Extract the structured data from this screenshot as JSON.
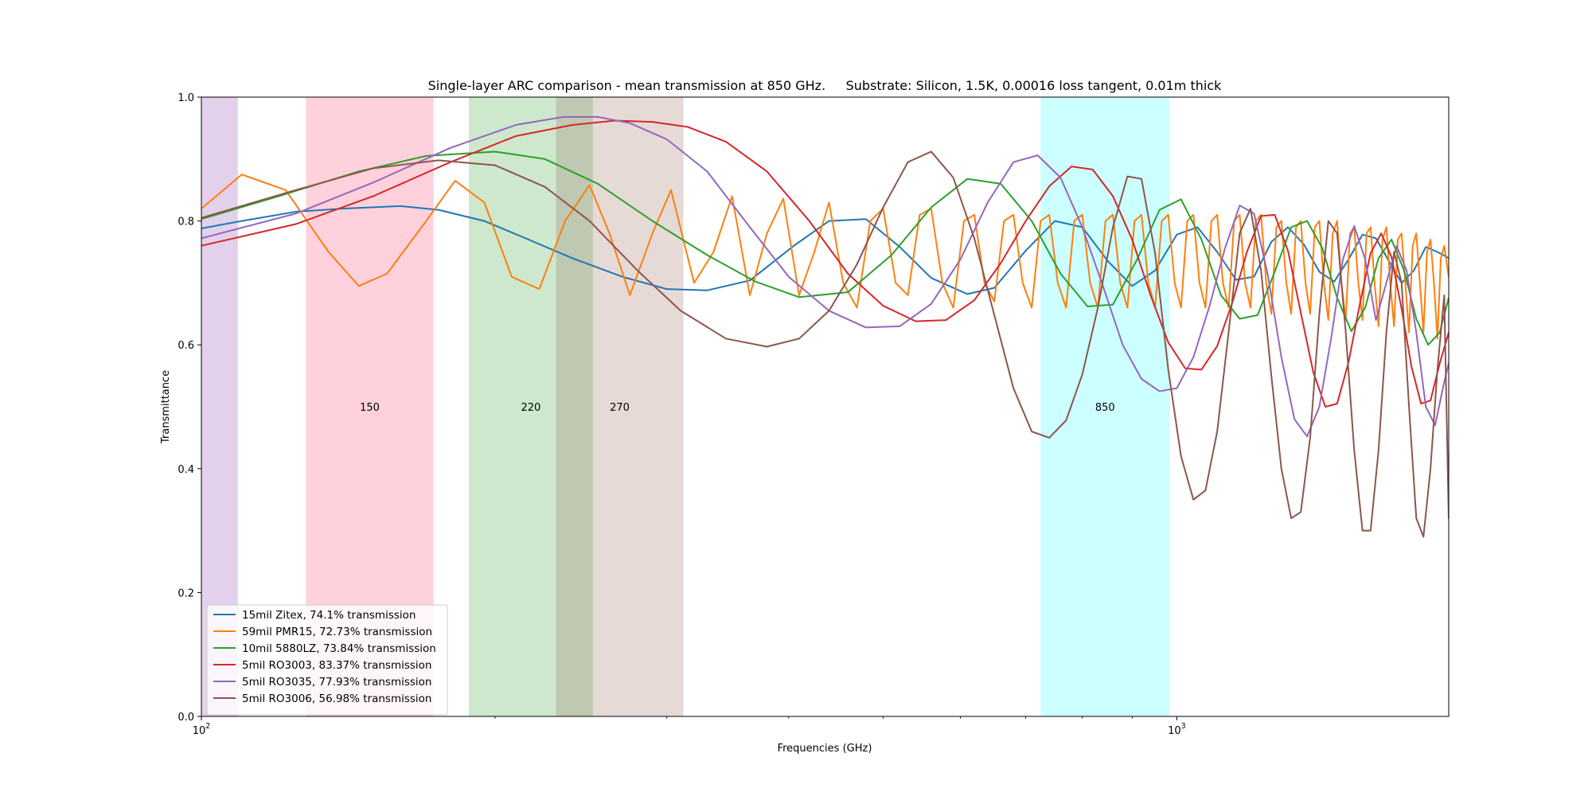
{
  "chart_data": {
    "type": "line",
    "title": "Single-layer ARC comparison - mean transmission at 850 GHz.     Substrate: Silicon, 1.5K, 0.00016 loss tangent, 0.01m thick",
    "xlabel": "Frequencies (GHz)",
    "ylabel": "Transmittance",
    "xscale": "log",
    "xlim": [
      100,
      1900
    ],
    "ylim": [
      0,
      1
    ],
    "x_major_ticks": [
      {
        "value": 100,
        "base": "10",
        "exp": "2"
      },
      {
        "value": 1000,
        "base": "10",
        "exp": "3"
      }
    ],
    "y_ticks": [
      "0.0",
      "0.2",
      "0.4",
      "0.6",
      "0.8",
      "1.0"
    ],
    "grid": false,
    "legend_position": "lower left",
    "bands": [
      {
        "x0": 100,
        "x1": 109,
        "color": "#9b59b6",
        "opacity": 0.28,
        "label": ""
      },
      {
        "x0": 128,
        "x1": 173,
        "color": "#ff6f91",
        "opacity": 0.32,
        "label": "150"
      },
      {
        "x0": 188,
        "x1": 252,
        "color": "#2ca02c",
        "opacity": 0.24,
        "label": "220"
      },
      {
        "x0": 231,
        "x1": 312,
        "color": "#8c564b",
        "opacity": 0.22,
        "label": "270"
      },
      {
        "x0": 725,
        "x1": 983,
        "color": "#00ffff",
        "opacity": 0.2,
        "label": "850"
      }
    ],
    "band_label_y": 0.5,
    "series": [
      {
        "name": "15mil Zitex, 74.1% transmission",
        "color": "#1f77b4",
        "x": [
          100,
          110,
          125,
          140,
          160,
          175,
          195,
          215,
          240,
          270,
          300,
          330,
          365,
          405,
          440,
          480,
          520,
          560,
          610,
          650,
          700,
          750,
          800,
          850,
          900,
          950,
          1000,
          1050,
          1100,
          1150,
          1200,
          1250,
          1300,
          1350,
          1400,
          1450,
          1500,
          1550,
          1600,
          1650,
          1700,
          1750,
          1800,
          1850,
          1900
        ],
        "y": [
          0.788,
          0.8,
          0.815,
          0.82,
          0.824,
          0.818,
          0.8,
          0.772,
          0.74,
          0.71,
          0.69,
          0.688,
          0.704,
          0.76,
          0.8,
          0.803,
          0.758,
          0.708,
          0.682,
          0.692,
          0.752,
          0.8,
          0.79,
          0.735,
          0.695,
          0.72,
          0.778,
          0.79,
          0.75,
          0.705,
          0.71,
          0.766,
          0.79,
          0.762,
          0.718,
          0.702,
          0.738,
          0.778,
          0.772,
          0.735,
          0.7,
          0.72,
          0.758,
          0.75,
          0.74
        ]
      },
      {
        "name": "59mil PMR15, 72.73% transmission",
        "color": "#ff7f0e",
        "x": [
          100,
          110,
          122,
          135,
          145,
          155,
          170,
          182,
          195,
          208,
          222,
          236,
          250,
          262,
          275,
          290,
          303,
          320,
          335,
          350,
          365,
          380,
          395,
          410,
          425,
          440,
          455,
          470,
          485,
          500,
          515,
          530,
          545,
          560,
          575,
          590,
          605,
          620,
          635,
          650,
          665,
          680,
          695,
          710,
          725,
          740,
          755,
          770,
          785,
          800,
          815,
          830,
          845,
          860,
          875,
          890,
          905,
          920,
          935,
          950,
          965,
          980,
          995,
          1010,
          1025,
          1040,
          1055,
          1070,
          1085,
          1100,
          1115,
          1130,
          1145,
          1160,
          1175,
          1190,
          1205,
          1220,
          1235,
          1250,
          1265,
          1280,
          1295,
          1310,
          1325,
          1340,
          1355,
          1370,
          1385,
          1400,
          1415,
          1430,
          1445,
          1460,
          1475,
          1490,
          1505,
          1520,
          1535,
          1550,
          1565,
          1580,
          1595,
          1610,
          1625,
          1640,
          1655,
          1670,
          1685,
          1700,
          1715,
          1730,
          1745,
          1760,
          1775,
          1790,
          1805,
          1820,
          1835,
          1850,
          1865,
          1880,
          1900
        ],
        "y": [
          0.82,
          0.875,
          0.85,
          0.75,
          0.695,
          0.715,
          0.8,
          0.865,
          0.83,
          0.71,
          0.69,
          0.8,
          0.858,
          0.78,
          0.68,
          0.78,
          0.85,
          0.7,
          0.75,
          0.84,
          0.68,
          0.78,
          0.836,
          0.68,
          0.75,
          0.83,
          0.7,
          0.66,
          0.8,
          0.82,
          0.7,
          0.68,
          0.81,
          0.82,
          0.7,
          0.66,
          0.8,
          0.81,
          0.7,
          0.67,
          0.8,
          0.81,
          0.7,
          0.66,
          0.8,
          0.81,
          0.7,
          0.66,
          0.8,
          0.81,
          0.7,
          0.66,
          0.8,
          0.81,
          0.7,
          0.66,
          0.8,
          0.81,
          0.7,
          0.66,
          0.8,
          0.81,
          0.7,
          0.66,
          0.8,
          0.81,
          0.7,
          0.66,
          0.8,
          0.81,
          0.7,
          0.66,
          0.8,
          0.81,
          0.7,
          0.66,
          0.8,
          0.81,
          0.7,
          0.65,
          0.79,
          0.8,
          0.7,
          0.65,
          0.79,
          0.8,
          0.7,
          0.65,
          0.79,
          0.8,
          0.7,
          0.64,
          0.78,
          0.8,
          0.7,
          0.64,
          0.78,
          0.79,
          0.7,
          0.64,
          0.78,
          0.79,
          0.7,
          0.63,
          0.77,
          0.79,
          0.7,
          0.63,
          0.77,
          0.78,
          0.7,
          0.62,
          0.76,
          0.78,
          0.7,
          0.62,
          0.75,
          0.77,
          0.7,
          0.61,
          0.74,
          0.76,
          0.71
        ]
      },
      {
        "name": "10mil 5880LZ, 73.84% transmission",
        "color": "#2ca02c",
        "x": [
          100,
          120,
          145,
          170,
          200,
          225,
          255,
          290,
          330,
          370,
          410,
          460,
          510,
          560,
          610,
          660,
          710,
          760,
          810,
          860,
          910,
          960,
          1010,
          1060,
          1110,
          1160,
          1210,
          1260,
          1310,
          1360,
          1410,
          1460,
          1510,
          1560,
          1610,
          1660,
          1710,
          1760,
          1810,
          1860,
          1900
        ],
        "y": [
          0.803,
          0.84,
          0.88,
          0.905,
          0.912,
          0.9,
          0.86,
          0.8,
          0.745,
          0.702,
          0.677,
          0.685,
          0.745,
          0.822,
          0.868,
          0.86,
          0.8,
          0.715,
          0.662,
          0.665,
          0.737,
          0.818,
          0.835,
          0.77,
          0.68,
          0.642,
          0.648,
          0.718,
          0.79,
          0.8,
          0.756,
          0.676,
          0.622,
          0.66,
          0.74,
          0.77,
          0.72,
          0.642,
          0.6,
          0.62,
          0.676
        ]
      },
      {
        "name": "5mil RO3003, 83.37% transmission",
        "color": "#d62728",
        "x": [
          100,
          125,
          150,
          180,
          210,
          240,
          265,
          290,
          315,
          345,
          380,
          420,
          460,
          500,
          540,
          580,
          620,
          660,
          700,
          740,
          780,
          820,
          860,
          900,
          940,
          980,
          1020,
          1060,
          1100,
          1140,
          1180,
          1220,
          1260,
          1300,
          1340,
          1380,
          1420,
          1460,
          1500,
          1540,
          1580,
          1620,
          1660,
          1700,
          1740,
          1780,
          1820,
          1860,
          1900
        ],
        "y": [
          0.76,
          0.795,
          0.84,
          0.895,
          0.937,
          0.955,
          0.962,
          0.96,
          0.952,
          0.928,
          0.88,
          0.8,
          0.715,
          0.663,
          0.638,
          0.64,
          0.672,
          0.732,
          0.8,
          0.856,
          0.888,
          0.883,
          0.84,
          0.77,
          0.68,
          0.604,
          0.562,
          0.56,
          0.598,
          0.668,
          0.75,
          0.808,
          0.81,
          0.752,
          0.652,
          0.556,
          0.5,
          0.505,
          0.572,
          0.665,
          0.748,
          0.78,
          0.742,
          0.658,
          0.565,
          0.505,
          0.51,
          0.57,
          0.62
        ]
      },
      {
        "name": "5mil RO3035, 77.93% transmission",
        "color": "#9467bd",
        "x": [
          100,
          125,
          150,
          180,
          210,
          235,
          255,
          275,
          300,
          330,
          365,
          400,
          440,
          480,
          520,
          560,
          600,
          640,
          680,
          720,
          760,
          800,
          840,
          880,
          920,
          960,
          1000,
          1040,
          1080,
          1120,
          1160,
          1200,
          1240,
          1280,
          1320,
          1360,
          1400,
          1440,
          1480,
          1520,
          1560,
          1600,
          1640,
          1680,
          1720,
          1760,
          1800,
          1840,
          1880,
          1900
        ],
        "y": [
          0.772,
          0.812,
          0.862,
          0.918,
          0.955,
          0.968,
          0.968,
          0.958,
          0.932,
          0.88,
          0.79,
          0.71,
          0.655,
          0.628,
          0.63,
          0.666,
          0.738,
          0.83,
          0.895,
          0.906,
          0.87,
          0.79,
          0.695,
          0.6,
          0.545,
          0.525,
          0.53,
          0.58,
          0.662,
          0.755,
          0.825,
          0.812,
          0.712,
          0.58,
          0.48,
          0.452,
          0.5,
          0.612,
          0.738,
          0.792,
          0.738,
          0.64,
          0.7,
          0.76,
          0.72,
          0.62,
          0.5,
          0.47,
          0.54,
          0.57
        ]
      },
      {
        "name": "5mil RO3006, 56.98% transmission",
        "color": "#8c564b",
        "x": [
          100,
          125,
          150,
          175,
          200,
          225,
          250,
          280,
          310,
          345,
          380,
          410,
          440,
          470,
          500,
          530,
          560,
          590,
          620,
          650,
          680,
          710,
          740,
          770,
          800,
          830,
          860,
          890,
          920,
          950,
          980,
          1010,
          1040,
          1070,
          1100,
          1130,
          1160,
          1190,
          1220,
          1250,
          1280,
          1310,
          1340,
          1370,
          1400,
          1430,
          1460,
          1490,
          1520,
          1550,
          1580,
          1610,
          1640,
          1670,
          1700,
          1730,
          1760,
          1790,
          1820,
          1850,
          1880,
          1900
        ],
        "y": [
          0.805,
          0.85,
          0.885,
          0.898,
          0.89,
          0.855,
          0.8,
          0.72,
          0.655,
          0.61,
          0.597,
          0.61,
          0.655,
          0.73,
          0.822,
          0.895,
          0.912,
          0.87,
          0.772,
          0.648,
          0.53,
          0.46,
          0.45,
          0.478,
          0.552,
          0.66,
          0.79,
          0.872,
          0.868,
          0.748,
          0.56,
          0.42,
          0.35,
          0.365,
          0.46,
          0.62,
          0.78,
          0.82,
          0.72,
          0.55,
          0.4,
          0.32,
          0.33,
          0.45,
          0.65,
          0.8,
          0.78,
          0.62,
          0.43,
          0.3,
          0.3,
          0.43,
          0.62,
          0.75,
          0.7,
          0.5,
          0.32,
          0.29,
          0.4,
          0.56,
          0.68,
          0.32
        ]
      }
    ]
  }
}
